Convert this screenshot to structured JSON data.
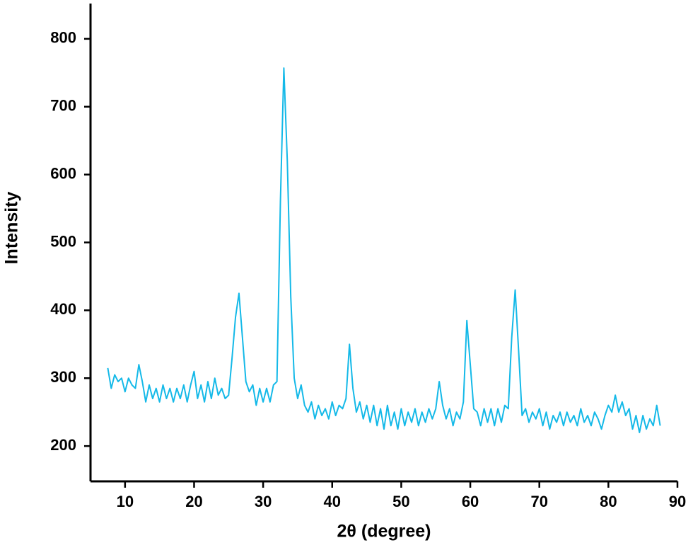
{
  "chart_data": {
    "type": "line",
    "x_label": "2θ (degree)",
    "y_label": "Intensity",
    "color": "#14b9e8",
    "xlim": [
      5,
      90
    ],
    "xticks": [
      10,
      20,
      30,
      40,
      50,
      60,
      70,
      80,
      90
    ],
    "ylim": [
      148,
      852
    ],
    "yticks": [
      200,
      300,
      400,
      500,
      600,
      700,
      800
    ],
    "x": [
      7.5,
      8,
      8.5,
      9,
      9.5,
      10,
      10.5,
      11,
      11.5,
      12,
      12.5,
      13,
      13.5,
      14,
      14.5,
      15,
      15.5,
      16,
      16.5,
      17,
      17.5,
      18,
      18.5,
      19,
      19.5,
      20,
      20.5,
      21,
      21.5,
      22,
      22.5,
      23,
      23.5,
      24,
      24.5,
      25,
      25.5,
      26,
      26.5,
      27,
      27.5,
      28,
      28.5,
      29,
      29.5,
      30,
      30.5,
      31,
      31.5,
      32,
      32.5,
      33,
      33.5,
      34,
      34.5,
      35,
      35.5,
      36,
      36.5,
      37,
      37.5,
      38,
      38.5,
      39,
      39.5,
      40,
      40.5,
      41,
      41.5,
      42,
      42.5,
      43,
      43.5,
      44,
      44.5,
      45,
      45.5,
      46,
      46.5,
      47,
      47.5,
      48,
      48.5,
      49,
      49.5,
      50,
      50.5,
      51,
      51.5,
      52,
      52.5,
      53,
      53.5,
      54,
      54.5,
      55,
      55.5,
      56,
      56.5,
      57,
      57.5,
      58,
      58.5,
      59,
      59.5,
      60,
      60.5,
      61,
      61.5,
      62,
      62.5,
      63,
      63.5,
      64,
      64.5,
      65,
      65.5,
      66,
      66.5,
      67,
      67.5,
      68,
      68.5,
      69,
      69.5,
      70,
      70.5,
      71,
      71.5,
      72,
      72.5,
      73,
      73.5,
      74,
      74.5,
      75,
      75.5,
      76,
      76.5,
      77,
      77.5,
      78,
      78.5,
      79,
      79.5,
      80,
      80.5,
      81,
      81.5,
      82,
      82.5,
      83,
      83.5,
      84,
      84.5,
      85,
      85.5,
      86,
      86.5,
      87,
      87.5
    ],
    "values": [
      315,
      285,
      305,
      295,
      300,
      280,
      300,
      290,
      285,
      320,
      295,
      265,
      290,
      270,
      285,
      265,
      290,
      270,
      285,
      265,
      285,
      270,
      290,
      265,
      290,
      310,
      270,
      290,
      265,
      295,
      270,
      300,
      275,
      285,
      270,
      275,
      330,
      390,
      425,
      360,
      295,
      280,
      290,
      260,
      285,
      265,
      285,
      265,
      290,
      295,
      560,
      757,
      620,
      420,
      300,
      270,
      290,
      260,
      250,
      265,
      240,
      260,
      245,
      255,
      240,
      265,
      245,
      260,
      255,
      270,
      350,
      285,
      250,
      265,
      240,
      260,
      235,
      260,
      230,
      255,
      225,
      260,
      230,
      250,
      225,
      255,
      230,
      250,
      235,
      255,
      230,
      250,
      235,
      255,
      240,
      255,
      295,
      260,
      240,
      255,
      230,
      250,
      240,
      265,
      385,
      320,
      255,
      250,
      230,
      255,
      235,
      255,
      230,
      255,
      235,
      260,
      255,
      360,
      430,
      340,
      245,
      255,
      235,
      250,
      240,
      255,
      230,
      250,
      225,
      245,
      235,
      250,
      230,
      250,
      235,
      245,
      230,
      255,
      235,
      245,
      230,
      250,
      240,
      225,
      245,
      260,
      250,
      275,
      250,
      265,
      245,
      255,
      225,
      245,
      220,
      245,
      225,
      240,
      230,
      260,
      230
    ]
  }
}
